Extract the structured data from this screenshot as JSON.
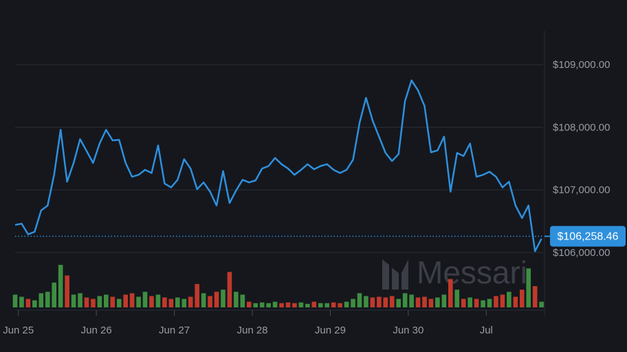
{
  "chart_data": {
    "type": "line",
    "x": [
      -1,
      1,
      3,
      5,
      7,
      9,
      11,
      13,
      15,
      17,
      19,
      21,
      23,
      25,
      27,
      29,
      31,
      33,
      35,
      37,
      39,
      41,
      43,
      45,
      47,
      49,
      51,
      53,
      55,
      57,
      59,
      61,
      63,
      65,
      67,
      69,
      71,
      73,
      75,
      77,
      79,
      81,
      83,
      85,
      87,
      89,
      91,
      93,
      95,
      97,
      99,
      101,
      103,
      105,
      107,
      109,
      111,
      113,
      115,
      117,
      119,
      121,
      123,
      125,
      127,
      129,
      131,
      133,
      135,
      137,
      139,
      141,
      143,
      145,
      147,
      149,
      151,
      153,
      155,
      157,
      159,
      161
    ],
    "series": [
      {
        "name": "Price",
        "color": "#2e90dd",
        "values": [
          106440,
          106460,
          106290,
          106330,
          106670,
          106750,
          107240,
          107960,
          107130,
          107430,
          107810,
          107620,
          107430,
          107740,
          107960,
          107790,
          107800,
          107430,
          107210,
          107240,
          107320,
          107270,
          107710,
          107100,
          107040,
          107160,
          107490,
          107340,
          107010,
          107120,
          106970,
          106750,
          107300,
          106790,
          106990,
          107160,
          107120,
          107150,
          107340,
          107380,
          107510,
          107410,
          107340,
          107240,
          107320,
          107410,
          107330,
          107380,
          107410,
          107320,
          107270,
          107320,
          107480,
          108070,
          108470,
          108110,
          107850,
          107590,
          107460,
          107570,
          108420,
          108750,
          108590,
          108340,
          107600,
          107630,
          107850,
          106970,
          107590,
          107540,
          107740,
          107210,
          107240,
          107290,
          107210,
          107040,
          107130,
          106750,
          106550,
          106750,
          106020,
          106220
        ]
      },
      {
        "name": "Volume",
        "values": [
          18,
          15,
          12,
          10,
          20,
          22,
          35,
          60,
          45,
          18,
          20,
          14,
          12,
          16,
          18,
          15,
          12,
          18,
          20,
          15,
          22,
          16,
          18,
          14,
          12,
          14,
          12,
          15,
          33,
          20,
          16,
          22,
          25,
          50,
          22,
          18,
          8,
          6,
          7,
          6,
          8,
          6,
          7,
          6,
          7,
          5,
          8,
          6,
          6,
          7,
          6,
          8,
          12,
          20,
          16,
          14,
          15,
          14,
          16,
          12,
          20,
          18,
          14,
          15,
          12,
          14,
          18,
          40,
          25,
          12,
          14,
          12,
          10,
          12,
          16,
          18,
          22,
          15,
          25,
          55,
          30,
          8
        ]
      }
    ],
    "up_color": "#3e8e41",
    "down_color": "#c0392b",
    "xlim": [
      -1,
      161.5
    ],
    "xticks": [
      {
        "value": 0,
        "label": "Jun 25"
      },
      {
        "value": 24,
        "label": "Jun 26"
      },
      {
        "value": 48,
        "label": "Jun 27"
      },
      {
        "value": 72,
        "label": "Jun 28"
      },
      {
        "value": 96,
        "label": "Jun 29"
      },
      {
        "value": 120,
        "label": "Jun 30"
      },
      {
        "value": 144,
        "label": "Jul"
      }
    ],
    "ylim": [
      105700,
      109540
    ],
    "yticks": [
      {
        "value": 106000,
        "label": "$106,000.00"
      },
      {
        "value": 107000,
        "label": "$107,000.00"
      },
      {
        "value": 108000,
        "label": "$108,000.00"
      },
      {
        "value": 109000,
        "label": "$109,000.00"
      }
    ],
    "grid": true,
    "last_price": {
      "value": 106258.46,
      "label": "$106,258.46"
    },
    "watermark": "Messari"
  }
}
